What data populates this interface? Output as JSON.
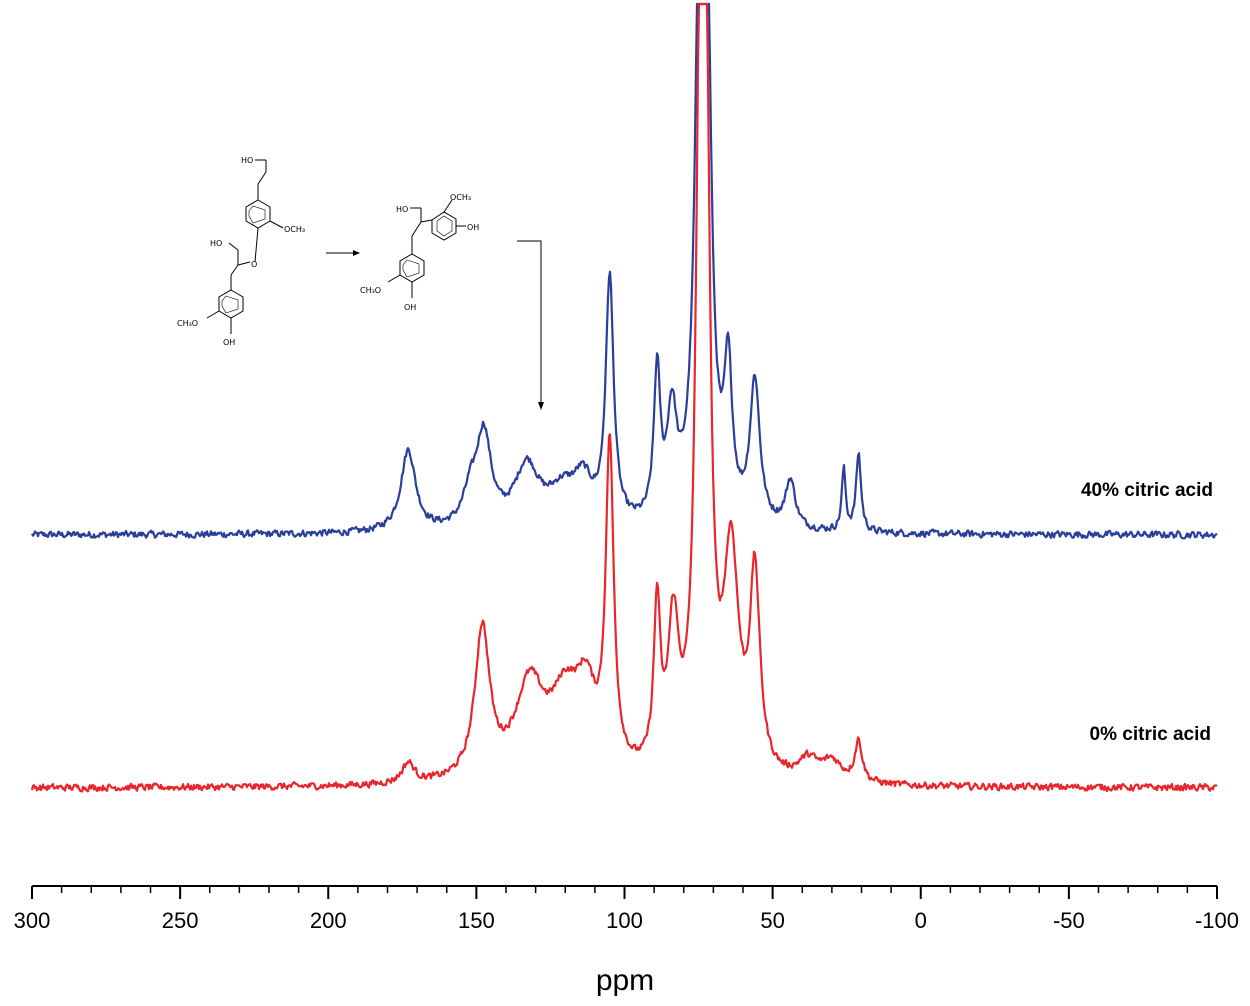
{
  "chart_data": {
    "type": "line",
    "title": "",
    "xlabel": "ppm",
    "ylabel": "",
    "xlim": [
      300,
      -100
    ],
    "x_reversed": true,
    "x_ticks": [
      300,
      250,
      200,
      150,
      100,
      50,
      0,
      -50,
      -100
    ],
    "x_tick_labels": [
      "300",
      "250",
      "200",
      "150",
      "100",
      "50",
      "0",
      "-50",
      "-100"
    ],
    "grid": false,
    "legend": "none",
    "series": [
      {
        "name": "40% citric acid",
        "color": "#2b3f9a",
        "baseline": 0.0,
        "peaks": [
          {
            "ppm": 173,
            "height": 0.24,
            "width": 3.0
          },
          {
            "ppm": 152,
            "height": 0.09,
            "width": 3.0
          },
          {
            "ppm": 147.5,
            "height": 0.27,
            "width": 3.0
          },
          {
            "ppm": 133,
            "height": 0.18,
            "width": 5.0
          },
          {
            "ppm": 121,
            "height": 0.1,
            "width": 6.0
          },
          {
            "ppm": 114,
            "height": 0.12,
            "width": 4.0
          },
          {
            "ppm": 105,
            "height": 0.72,
            "width": 1.6
          },
          {
            "ppm": 89,
            "height": 0.43,
            "width": 1.3
          },
          {
            "ppm": 84,
            "height": 0.3,
            "width": 2.0
          },
          {
            "ppm": 74.5,
            "height": 1.55,
            "width": 1.8
          },
          {
            "ppm": 72.5,
            "height": 1.55,
            "width": 1.8
          },
          {
            "ppm": 65,
            "height": 0.42,
            "width": 1.6
          },
          {
            "ppm": 56,
            "height": 0.42,
            "width": 2.0
          },
          {
            "ppm": 44,
            "height": 0.14,
            "width": 2.0
          },
          {
            "ppm": 26,
            "height": 0.18,
            "width": 0.8
          },
          {
            "ppm": 21,
            "height": 0.23,
            "width": 1.0
          }
        ]
      },
      {
        "name": "0% citric acid",
        "color": "#e8262c",
        "baseline": 0.0,
        "peaks": [
          {
            "ppm": 173,
            "height": 0.06,
            "width": 2.5
          },
          {
            "ppm": 148,
            "height": 0.44,
            "width": 3.0
          },
          {
            "ppm": 132,
            "height": 0.27,
            "width": 6.0
          },
          {
            "ppm": 120,
            "height": 0.22,
            "width": 6.0
          },
          {
            "ppm": 113,
            "height": 0.21,
            "width": 4.0
          },
          {
            "ppm": 105,
            "height": 0.94,
            "width": 1.6
          },
          {
            "ppm": 89,
            "height": 0.47,
            "width": 1.3
          },
          {
            "ppm": 83.5,
            "height": 0.42,
            "width": 2.2
          },
          {
            "ppm": 74.5,
            "height": 1.9,
            "width": 1.6
          },
          {
            "ppm": 72.5,
            "height": 1.75,
            "width": 1.6
          },
          {
            "ppm": 64,
            "height": 0.63,
            "width": 3.0
          },
          {
            "ppm": 56,
            "height": 0.57,
            "width": 2.0
          },
          {
            "ppm": 38,
            "height": 0.06,
            "width": 4.0
          },
          {
            "ppm": 30,
            "height": 0.06,
            "width": 4.0
          },
          {
            "ppm": 21,
            "height": 0.12,
            "width": 1.5
          }
        ]
      }
    ],
    "annotations": [
      {
        "type": "chemical-structure",
        "labels": [
          "HO",
          "HO",
          "OCH3",
          "O",
          "CH3O",
          "OH"
        ]
      },
      {
        "type": "chemical-structure",
        "labels": [
          "HO",
          "OCH3",
          "OH",
          "CH3O",
          "OH"
        ]
      }
    ]
  },
  "labels": {
    "series_top": "40% citric acid",
    "series_bottom": "0% citric acid",
    "chem1": {
      "ho_top": "HO",
      "ho_mid": "HO",
      "och3": "OCH₃",
      "o": "O",
      "ch3o": "CH₃O",
      "oh": "OH"
    },
    "chem2": {
      "ho": "HO",
      "och3": "OCH₃",
      "oh_right": "OH",
      "ch3o": "CH₃O",
      "oh_bottom": "OH"
    }
  }
}
